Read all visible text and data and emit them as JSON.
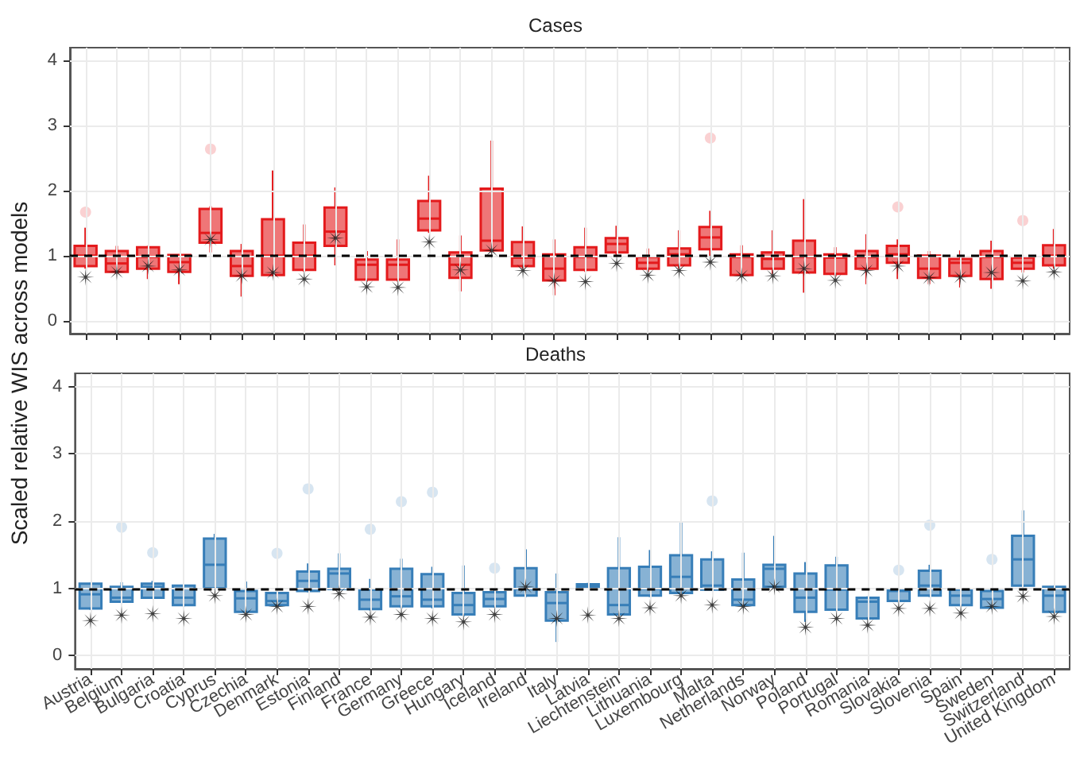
{
  "chart_data": [
    {
      "type": "box",
      "title": "Cases",
      "ylabel": "Scaled relative WIS across models",
      "ylim": [
        -0.2,
        4.2
      ],
      "yticks": [
        0,
        1,
        2,
        3,
        4
      ],
      "grid": true,
      "tick_labels": "y",
      "categories": [
        "Austria",
        "Belgium",
        "Bulgaria",
        "Croatia",
        "Cyprus",
        "Czechia",
        "Denmark",
        "Estonia",
        "Finland",
        "France",
        "Germany",
        "Greece",
        "Hungary",
        "Iceland",
        "Ireland",
        "Italy",
        "Latvia",
        "Liechtenstein",
        "Lithuania",
        "Luxembourg",
        "Malta",
        "Netherlands",
        "Norway",
        "Poland",
        "Portugal",
        "Romania",
        "Slovakia",
        "Slovenia",
        "Spain",
        "Sweden",
        "Switzerland",
        "United Kingdom"
      ],
      "ref_lines": [
        {
          "axis": "y",
          "value": 1,
          "color": "#000000",
          "line_style": "dashed"
        }
      ],
      "series": [
        {
          "color": "#e41a1c",
          "boxes": [
            {
              "low": 0.8,
              "q1": 0.84,
              "median": 1.0,
              "q3": 1.15,
              "high": 1.43,
              "outliers": [
                1.67
              ]
            },
            {
              "low": 0.72,
              "q1": 0.75,
              "median": 0.88,
              "q3": 1.07,
              "high": 1.15
            },
            {
              "low": 0.64,
              "q1": 0.8,
              "median": 0.98,
              "q3": 1.13,
              "high": 1.15
            },
            {
              "low": 0.56,
              "q1": 0.75,
              "median": 0.9,
              "q3": 1.01,
              "high": 1.02
            },
            {
              "low": 1.05,
              "q1": 1.2,
              "median": 1.35,
              "q3": 1.72,
              "high": 1.76,
              "outliers": [
                2.64
              ]
            },
            {
              "low": 0.37,
              "q1": 0.69,
              "median": 0.84,
              "q3": 1.07,
              "high": 1.18
            },
            {
              "low": 0.7,
              "q1": 0.7,
              "median": 1.0,
              "q3": 1.56,
              "high": 2.31
            },
            {
              "low": 0.75,
              "q1": 0.78,
              "median": 1.0,
              "q3": 1.2,
              "high": 1.48
            },
            {
              "low": 0.85,
              "q1": 1.15,
              "median": 1.37,
              "q3": 1.74,
              "high": 2.05
            },
            {
              "low": 0.6,
              "q1": 0.63,
              "median": 0.86,
              "q3": 0.94,
              "high": 1.07
            },
            {
              "low": 0.6,
              "q1": 0.63,
              "median": 0.86,
              "q3": 0.94,
              "high": 1.25
            },
            {
              "low": 1.35,
              "q1": 1.39,
              "median": 1.57,
              "q3": 1.84,
              "high": 2.23
            },
            {
              "low": 0.45,
              "q1": 0.66,
              "median": 0.86,
              "q3": 1.05,
              "high": 1.31
            },
            {
              "low": 1.05,
              "q1": 1.08,
              "median": 1.23,
              "q3": 2.03,
              "high": 2.77
            },
            {
              "low": 0.8,
              "q1": 0.84,
              "median": 0.97,
              "q3": 1.21,
              "high": 1.45
            },
            {
              "low": 0.39,
              "q1": 0.62,
              "median": 0.8,
              "q3": 1.02,
              "high": 1.25
            },
            {
              "low": 0.75,
              "q1": 0.78,
              "median": 0.98,
              "q3": 1.13,
              "high": 1.43
            },
            {
              "low": 0.98,
              "q1": 1.05,
              "median": 1.18,
              "q3": 1.27,
              "high": 1.46
            },
            {
              "low": 0.75,
              "q1": 0.8,
              "median": 0.89,
              "q3": 0.98,
              "high": 1.11
            },
            {
              "low": 0.8,
              "q1": 0.85,
              "median": 1.02,
              "q3": 1.11,
              "high": 1.39
            },
            {
              "low": 0.98,
              "q1": 1.1,
              "median": 1.28,
              "q3": 1.44,
              "high": 1.69,
              "outliers": [
                2.81
              ]
            },
            {
              "low": 0.68,
              "q1": 0.7,
              "median": 0.98,
              "q3": 1.02,
              "high": 1.16
            },
            {
              "low": 0.72,
              "q1": 0.8,
              "median": 0.95,
              "q3": 1.05,
              "high": 1.39
            },
            {
              "low": 0.43,
              "q1": 0.74,
              "median": 0.98,
              "q3": 1.23,
              "high": 1.87
            },
            {
              "low": 0.68,
              "q1": 0.72,
              "median": 0.97,
              "q3": 1.02,
              "high": 1.13
            },
            {
              "low": 0.56,
              "q1": 0.8,
              "median": 0.98,
              "q3": 1.07,
              "high": 1.33
            },
            {
              "low": 0.64,
              "q1": 0.89,
              "median": 1.02,
              "q3": 1.15,
              "high": 1.25,
              "outliers": [
                1.75
              ]
            },
            {
              "low": 0.56,
              "q1": 0.66,
              "median": 0.8,
              "q3": 1.0,
              "high": 1.07
            },
            {
              "low": 0.51,
              "q1": 0.69,
              "median": 0.89,
              "q3": 0.95,
              "high": 1.08
            },
            {
              "low": 0.49,
              "q1": 0.64,
              "median": 0.98,
              "q3": 1.07,
              "high": 1.23
            },
            {
              "low": 0.74,
              "q1": 0.8,
              "median": 0.89,
              "q3": 0.97,
              "high": 1.0,
              "outliers": [
                1.54
              ]
            },
            {
              "low": 0.8,
              "q1": 0.85,
              "median": 1.0,
              "q3": 1.16,
              "high": 1.41
            }
          ]
        },
        {
          "type": "scatter",
          "color": "#111111",
          "marker": "star",
          "x": [
            "Austria",
            "Belgium",
            "Bulgaria",
            "Croatia",
            "Cyprus",
            "Czechia",
            "Denmark",
            "Estonia",
            "Finland",
            "France",
            "Germany",
            "Greece",
            "Hungary",
            "Iceland",
            "Ireland",
            "Italy",
            "Latvia",
            "Liechtenstein",
            "Lithuania",
            "Luxembourg",
            "Malta",
            "Netherlands",
            "Norway",
            "Poland",
            "Portugal",
            "Romania",
            "Slovakia",
            "Slovenia",
            "Spain",
            "Sweden",
            "Switzerland",
            "United Kingdom"
          ],
          "values": [
            0.67,
            0.75,
            0.84,
            0.78,
            1.25,
            0.69,
            0.74,
            0.64,
            1.27,
            0.52,
            0.51,
            1.21,
            0.78,
            1.08,
            0.77,
            0.61,
            0.6,
            0.88,
            0.7,
            0.77,
            0.9,
            0.69,
            0.69,
            0.8,
            0.62,
            0.77,
            0.84,
            0.66,
            0.67,
            0.74,
            0.61,
            0.75
          ]
        }
      ]
    },
    {
      "type": "box",
      "title": "Deaths",
      "ylim": [
        -0.2,
        4.2
      ],
      "yticks": [
        0,
        1,
        2,
        3,
        4
      ],
      "grid": true,
      "categories": [
        "Austria",
        "Belgium",
        "Bulgaria",
        "Croatia",
        "Cyprus",
        "Czechia",
        "Denmark",
        "Estonia",
        "Finland",
        "France",
        "Germany",
        "Greece",
        "Hungary",
        "Iceland",
        "Ireland",
        "Italy",
        "Latvia",
        "Liechtenstein",
        "Lithuania",
        "Luxembourg",
        "Malta",
        "Netherlands",
        "Norway",
        "Poland",
        "Portugal",
        "Romania",
        "Slovakia",
        "Slovenia",
        "Spain",
        "Sweden",
        "Switzerland",
        "United Kingdom"
      ],
      "ref_lines": [
        {
          "axis": "y",
          "value": 1,
          "color": "#000000",
          "line_style": "dashed"
        }
      ],
      "series": [
        {
          "color": "#377eb8",
          "boxes": [
            {
              "low": 0.68,
              "q1": 0.7,
              "median": 0.91,
              "q3": 1.07,
              "high": 1.08
            },
            {
              "low": 0.78,
              "q1": 0.8,
              "median": 0.86,
              "q3": 1.02,
              "high": 1.09,
              "outliers": [
                1.91
              ]
            },
            {
              "low": 0.84,
              "q1": 0.86,
              "median": 1.02,
              "q3": 1.07,
              "high": 1.11,
              "outliers": [
                1.53
              ]
            },
            {
              "low": 0.73,
              "q1": 0.75,
              "median": 0.86,
              "q3": 1.04,
              "high": 1.05
            },
            {
              "low": 0.98,
              "q1": 1.0,
              "median": 1.35,
              "q3": 1.74,
              "high": 1.81
            },
            {
              "low": 0.63,
              "q1": 0.65,
              "median": 0.85,
              "q3": 0.96,
              "high": 1.1
            },
            {
              "low": 0.73,
              "q1": 0.75,
              "median": 0.81,
              "q3": 0.93,
              "high": 0.95,
              "outliers": [
                1.52
              ]
            },
            {
              "low": 0.94,
              "q1": 0.96,
              "median": 1.11,
              "q3": 1.25,
              "high": 1.37,
              "outliers": [
                2.48
              ]
            },
            {
              "low": 0.97,
              "q1": 0.99,
              "median": 1.22,
              "q3": 1.29,
              "high": 1.52
            },
            {
              "low": 0.67,
              "q1": 0.69,
              "median": 0.83,
              "q3": 0.98,
              "high": 1.14,
              "outliers": [
                1.88
              ]
            },
            {
              "low": 0.7,
              "q1": 0.73,
              "median": 0.88,
              "q3": 1.29,
              "high": 1.44,
              "outliers": [
                2.29
              ]
            },
            {
              "low": 0.7,
              "q1": 0.73,
              "median": 0.83,
              "q3": 1.21,
              "high": 1.32,
              "outliers": [
                2.43
              ]
            },
            {
              "low": 0.58,
              "q1": 0.61,
              "median": 0.75,
              "q3": 0.93,
              "high": 1.34
            },
            {
              "low": 0.71,
              "q1": 0.73,
              "median": 0.84,
              "q3": 0.94,
              "high": 0.97,
              "outliers": [
                1.3
              ]
            },
            {
              "low": 0.87,
              "q1": 0.89,
              "median": 0.99,
              "q3": 1.3,
              "high": 1.58
            },
            {
              "low": 0.2,
              "q1": 0.52,
              "median": 0.78,
              "q3": 0.94,
              "high": 1.22
            },
            {
              "low": 1.0,
              "q1": 1.01,
              "median": 1.03,
              "q3": 1.06,
              "high": 1.08
            },
            {
              "low": 0.59,
              "q1": 0.61,
              "median": 0.75,
              "q3": 1.3,
              "high": 1.76
            },
            {
              "low": 0.87,
              "q1": 0.89,
              "median": 0.99,
              "q3": 1.32,
              "high": 1.57
            },
            {
              "low": 0.91,
              "q1": 0.93,
              "median": 1.17,
              "q3": 1.49,
              "high": 1.98
            },
            {
              "low": 0.96,
              "q1": 0.98,
              "median": 1.04,
              "q3": 1.43,
              "high": 1.55,
              "outliers": [
                2.3
              ]
            },
            {
              "low": 0.73,
              "q1": 0.75,
              "median": 0.83,
              "q3": 1.13,
              "high": 1.53
            },
            {
              "low": 1.0,
              "q1": 1.02,
              "median": 1.29,
              "q3": 1.35,
              "high": 1.78
            },
            {
              "low": 0.5,
              "q1": 0.65,
              "median": 0.86,
              "q3": 1.22,
              "high": 1.39
            },
            {
              "low": 0.66,
              "q1": 0.68,
              "median": 0.98,
              "q3": 1.34,
              "high": 1.47
            },
            {
              "low": 0.53,
              "q1": 0.55,
              "median": 0.8,
              "q3": 0.86,
              "high": 0.88
            },
            {
              "low": 0.79,
              "q1": 0.81,
              "median": 0.96,
              "q3": 0.98,
              "high": 1.0,
              "outliers": [
                1.27
              ]
            },
            {
              "low": 0.87,
              "q1": 0.89,
              "median": 1.04,
              "q3": 1.26,
              "high": 1.35,
              "outliers": [
                1.94
              ]
            },
            {
              "low": 0.73,
              "q1": 0.75,
              "median": 0.89,
              "q3": 0.98,
              "high": 1.0
            },
            {
              "low": 0.69,
              "q1": 0.71,
              "median": 0.84,
              "q3": 0.96,
              "high": 1.0,
              "outliers": [
                1.43
              ]
            },
            {
              "low": 1.02,
              "q1": 1.04,
              "median": 1.43,
              "q3": 1.78,
              "high": 2.16
            },
            {
              "low": 0.63,
              "q1": 0.65,
              "median": 0.89,
              "q3": 1.02,
              "high": 1.04
            }
          ]
        },
        {
          "type": "scatter",
          "color": "#111111",
          "marker": "star",
          "x": [
            "Austria",
            "Belgium",
            "Bulgaria",
            "Croatia",
            "Cyprus",
            "Czechia",
            "Denmark",
            "Estonia",
            "Finland",
            "France",
            "Germany",
            "Greece",
            "Hungary",
            "Iceland",
            "Ireland",
            "Italy",
            "Latvia",
            "Liechtenstein",
            "Lithuania",
            "Luxembourg",
            "Malta",
            "Netherlands",
            "Norway",
            "Poland",
            "Portugal",
            "Romania",
            "Slovakia",
            "Slovenia",
            "Spain",
            "Sweden",
            "Switzerland",
            "United Kingdom"
          ],
          "values": [
            0.52,
            0.6,
            0.62,
            0.55,
            0.89,
            0.61,
            0.73,
            0.73,
            0.92,
            0.57,
            0.61,
            0.55,
            0.5,
            0.61,
            1.02,
            0.55,
            0.6,
            0.55,
            0.71,
            0.89,
            0.75,
            0.73,
            1.02,
            0.42,
            0.55,
            0.45,
            0.7,
            0.7,
            0.63,
            0.73,
            0.88,
            0.58
          ]
        }
      ]
    }
  ]
}
